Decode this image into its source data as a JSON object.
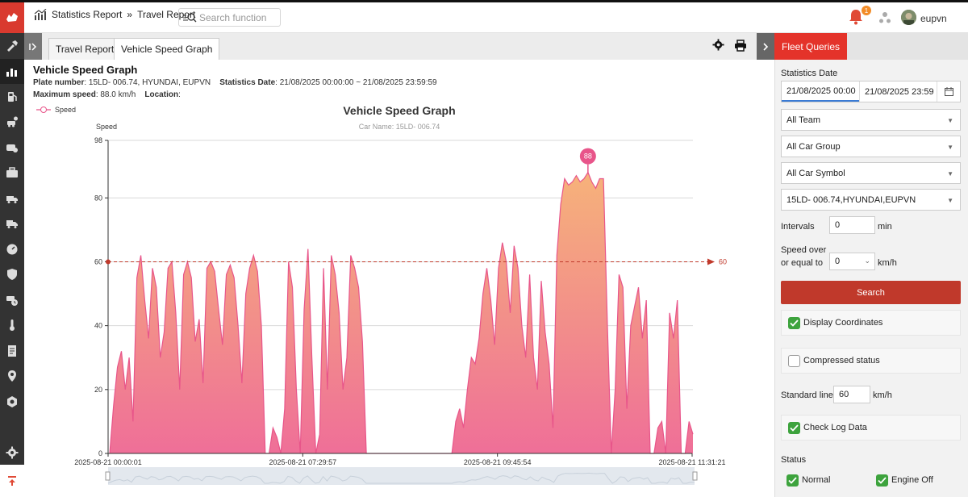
{
  "header": {
    "breadcrumb": [
      "Statistics Report",
      "»",
      "Travel Report"
    ],
    "search_placeholder": "Search function",
    "notification_count": "1",
    "username": "eupvn"
  },
  "tabs": [
    {
      "label": "Travel Report",
      "active": false
    },
    {
      "label": "Vehicle Speed Graph",
      "active": true
    }
  ],
  "report": {
    "title": "Vehicle Speed Graph",
    "plate_label": "Plate number",
    "plate_value": ": 15LD- 006.74, HYUNDAI, EUPVN",
    "stat_date_label": "Statistics Date",
    "stat_date_value": ": 21/08/2025 00:00:00 ~ 21/08/2025 23:59:59",
    "max_speed_label": "Maximum speed",
    "max_speed_value": ": 88.0 km/h",
    "location_label": "Location",
    "location_value": ":"
  },
  "chart_data": {
    "type": "area",
    "title": "Vehicle Speed Graph",
    "subtitle": "Car Name: 15LD- 006.74",
    "ylabel": "Speed",
    "legend": [
      "Speed"
    ],
    "legend_position": "top-left",
    "ylim": [
      0,
      98
    ],
    "yticks": [
      0,
      20,
      40,
      60,
      80,
      98
    ],
    "xlabels": [
      "2025-08-21 00:00:01",
      "2025-08-21 07:29:57",
      "2025-08-21 09:45:54",
      "2025-08-21 11:31:21"
    ],
    "standard_line": 60,
    "standard_line_label": "60",
    "max_marker": 88,
    "max_marker_label": "88",
    "series_color": "#e8558a",
    "fill_top": "#f6b27a",
    "fill_bottom": "#ef6f98",
    "grid": true,
    "series": [
      {
        "name": "Speed",
        "values": [
          0,
          15,
          27,
          32,
          20,
          30,
          10,
          55,
          62,
          48,
          36,
          58,
          52,
          30,
          38,
          58,
          60,
          44,
          20,
          56,
          60,
          55,
          35,
          42,
          22,
          58,
          60,
          57,
          45,
          34,
          56,
          59,
          55,
          40,
          22,
          50,
          58,
          62,
          57,
          40,
          0,
          0,
          8,
          5,
          0,
          14,
          60,
          52,
          20,
          0,
          45,
          64,
          30,
          0,
          6,
          58,
          20,
          62,
          56,
          44,
          20,
          30,
          62,
          58,
          52,
          35,
          0,
          0,
          0,
          0,
          0,
          0,
          0,
          0,
          0,
          0,
          0,
          0,
          0,
          0,
          0,
          0,
          0,
          0,
          0,
          0,
          0,
          0,
          0,
          10,
          14,
          8,
          20,
          30,
          28,
          36,
          50,
          58,
          48,
          34,
          58,
          66,
          60,
          44,
          65,
          58,
          40,
          30,
          56,
          30,
          20,
          54,
          38,
          28,
          8,
          62,
          78,
          86,
          84,
          85,
          87,
          85,
          86,
          88,
          85,
          83,
          86,
          86,
          40,
          0,
          20,
          56,
          52,
          14,
          40,
          46,
          52,
          36,
          48,
          0,
          0,
          8,
          10,
          0,
          44,
          36,
          48,
          0,
          0,
          10,
          6
        ]
      }
    ]
  },
  "right_panel": {
    "tab_label": "Fleet Queries",
    "stat_date_label": "Statistics Date",
    "date_from": "21/08/2025 00:00",
    "date_to": "21/08/2025 23:59",
    "team": "All Team",
    "car_group": "All Car Group",
    "car_symbol": "All Car Symbol",
    "vehicle": "15LD- 006.74,HYUNDAI,EUPVN",
    "intervals_label": "Intervals",
    "intervals_value": "0",
    "intervals_unit": "min",
    "speed_over_label_1": "Speed over",
    "speed_over_label_2": "or equal to",
    "speed_over_value": "0",
    "speed_over_unit": "km/h",
    "search_label": "Search",
    "display_coords_label": "Display Coordinates",
    "display_coords_checked": true,
    "compressed_label": "Compressed status",
    "compressed_checked": false,
    "standard_line_label": "Standard line",
    "standard_line_value": "60",
    "standard_line_unit": "km/h",
    "check_log_label": "Check Log Data",
    "check_log_checked": true,
    "status_label": "Status",
    "status_normal": "Normal",
    "status_engine_off": "Engine Off"
  }
}
